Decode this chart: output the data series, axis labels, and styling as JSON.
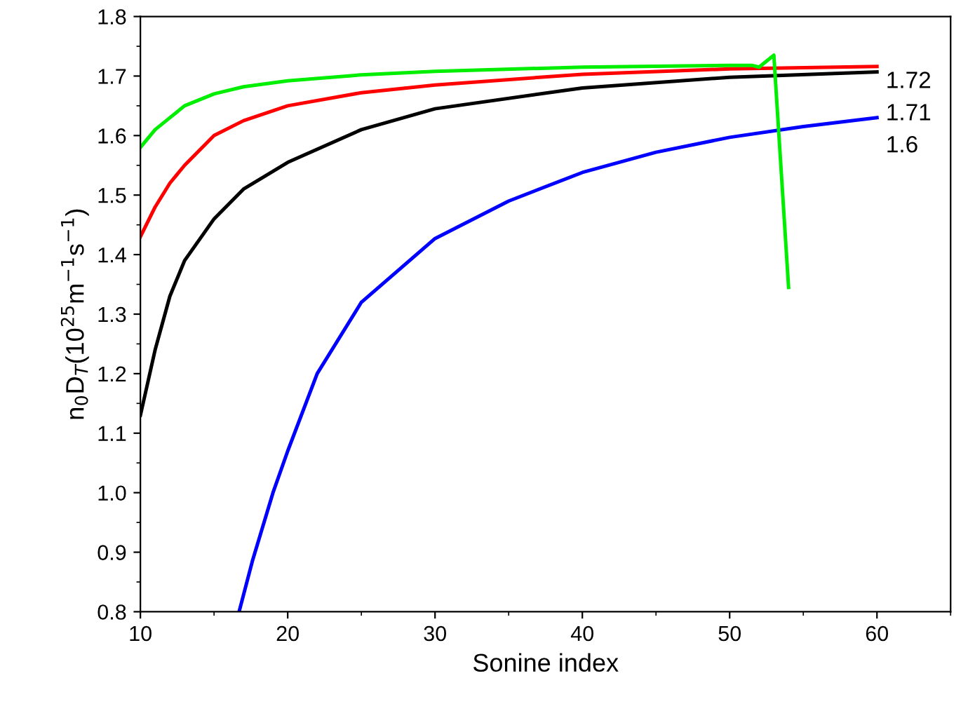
{
  "chart_data": {
    "type": "line",
    "xlabel": "Sonine index",
    "ylabel": "n$_{0}$D$_{T}$(10$^{25}$m$^{−1}$s$^{−1}$)",
    "xlim": [
      10,
      65
    ],
    "xticks": [
      10,
      20,
      30,
      40,
      50,
      60
    ],
    "ylim": [
      0.8,
      1.8
    ],
    "yticks": [
      0.8,
      0.9,
      {
        "value": 1.0,
        "label": "1.0"
      },
      1.1,
      1.2,
      1.3,
      1.4,
      1.5,
      1.6,
      1.7,
      1.8
    ],
    "grid": false,
    "legend": false,
    "marker": "none",
    "line_style": "solid",
    "series": [
      {
        "color": "#0000ff",
        "x": [
          16.7,
          17.6,
          19,
          20,
          22,
          25,
          30,
          35,
          40,
          45,
          50,
          55,
          60
        ],
        "values": [
          0.8,
          0.885,
          1.0,
          1.07,
          1.2,
          1.32,
          1.427,
          1.49,
          1.538,
          1.572,
          1.597,
          1.615,
          1.63
        ]
      },
      {
        "color": "#000000",
        "x": [
          10,
          11,
          12,
          13,
          15,
          17,
          20,
          25,
          30,
          40,
          50,
          60
        ],
        "values": [
          1.13,
          1.24,
          1.33,
          1.39,
          1.46,
          1.51,
          1.555,
          1.61,
          1.645,
          1.68,
          1.698,
          1.707
        ]
      },
      {
        "color": "#ff0000",
        "x": [
          10,
          11,
          12,
          13,
          15,
          17,
          20,
          25,
          30,
          40,
          50,
          60
        ],
        "values": [
          1.43,
          1.48,
          1.52,
          1.55,
          1.6,
          1.625,
          1.65,
          1.672,
          1.685,
          1.703,
          1.712,
          1.716
        ]
      },
      {
        "color": "#00ee00",
        "x": [
          10,
          11,
          12,
          13,
          15,
          17,
          20,
          25,
          30,
          40,
          50,
          51.5,
          52,
          53,
          54
        ],
        "values": [
          1.58,
          1.61,
          1.63,
          1.65,
          1.67,
          1.682,
          1.692,
          1.702,
          1.708,
          1.715,
          1.718,
          1.718,
          1.715,
          1.735,
          1.345
        ]
      }
    ],
    "annotations": [
      "1.72",
      "1.71",
      "1.6"
    ]
  }
}
